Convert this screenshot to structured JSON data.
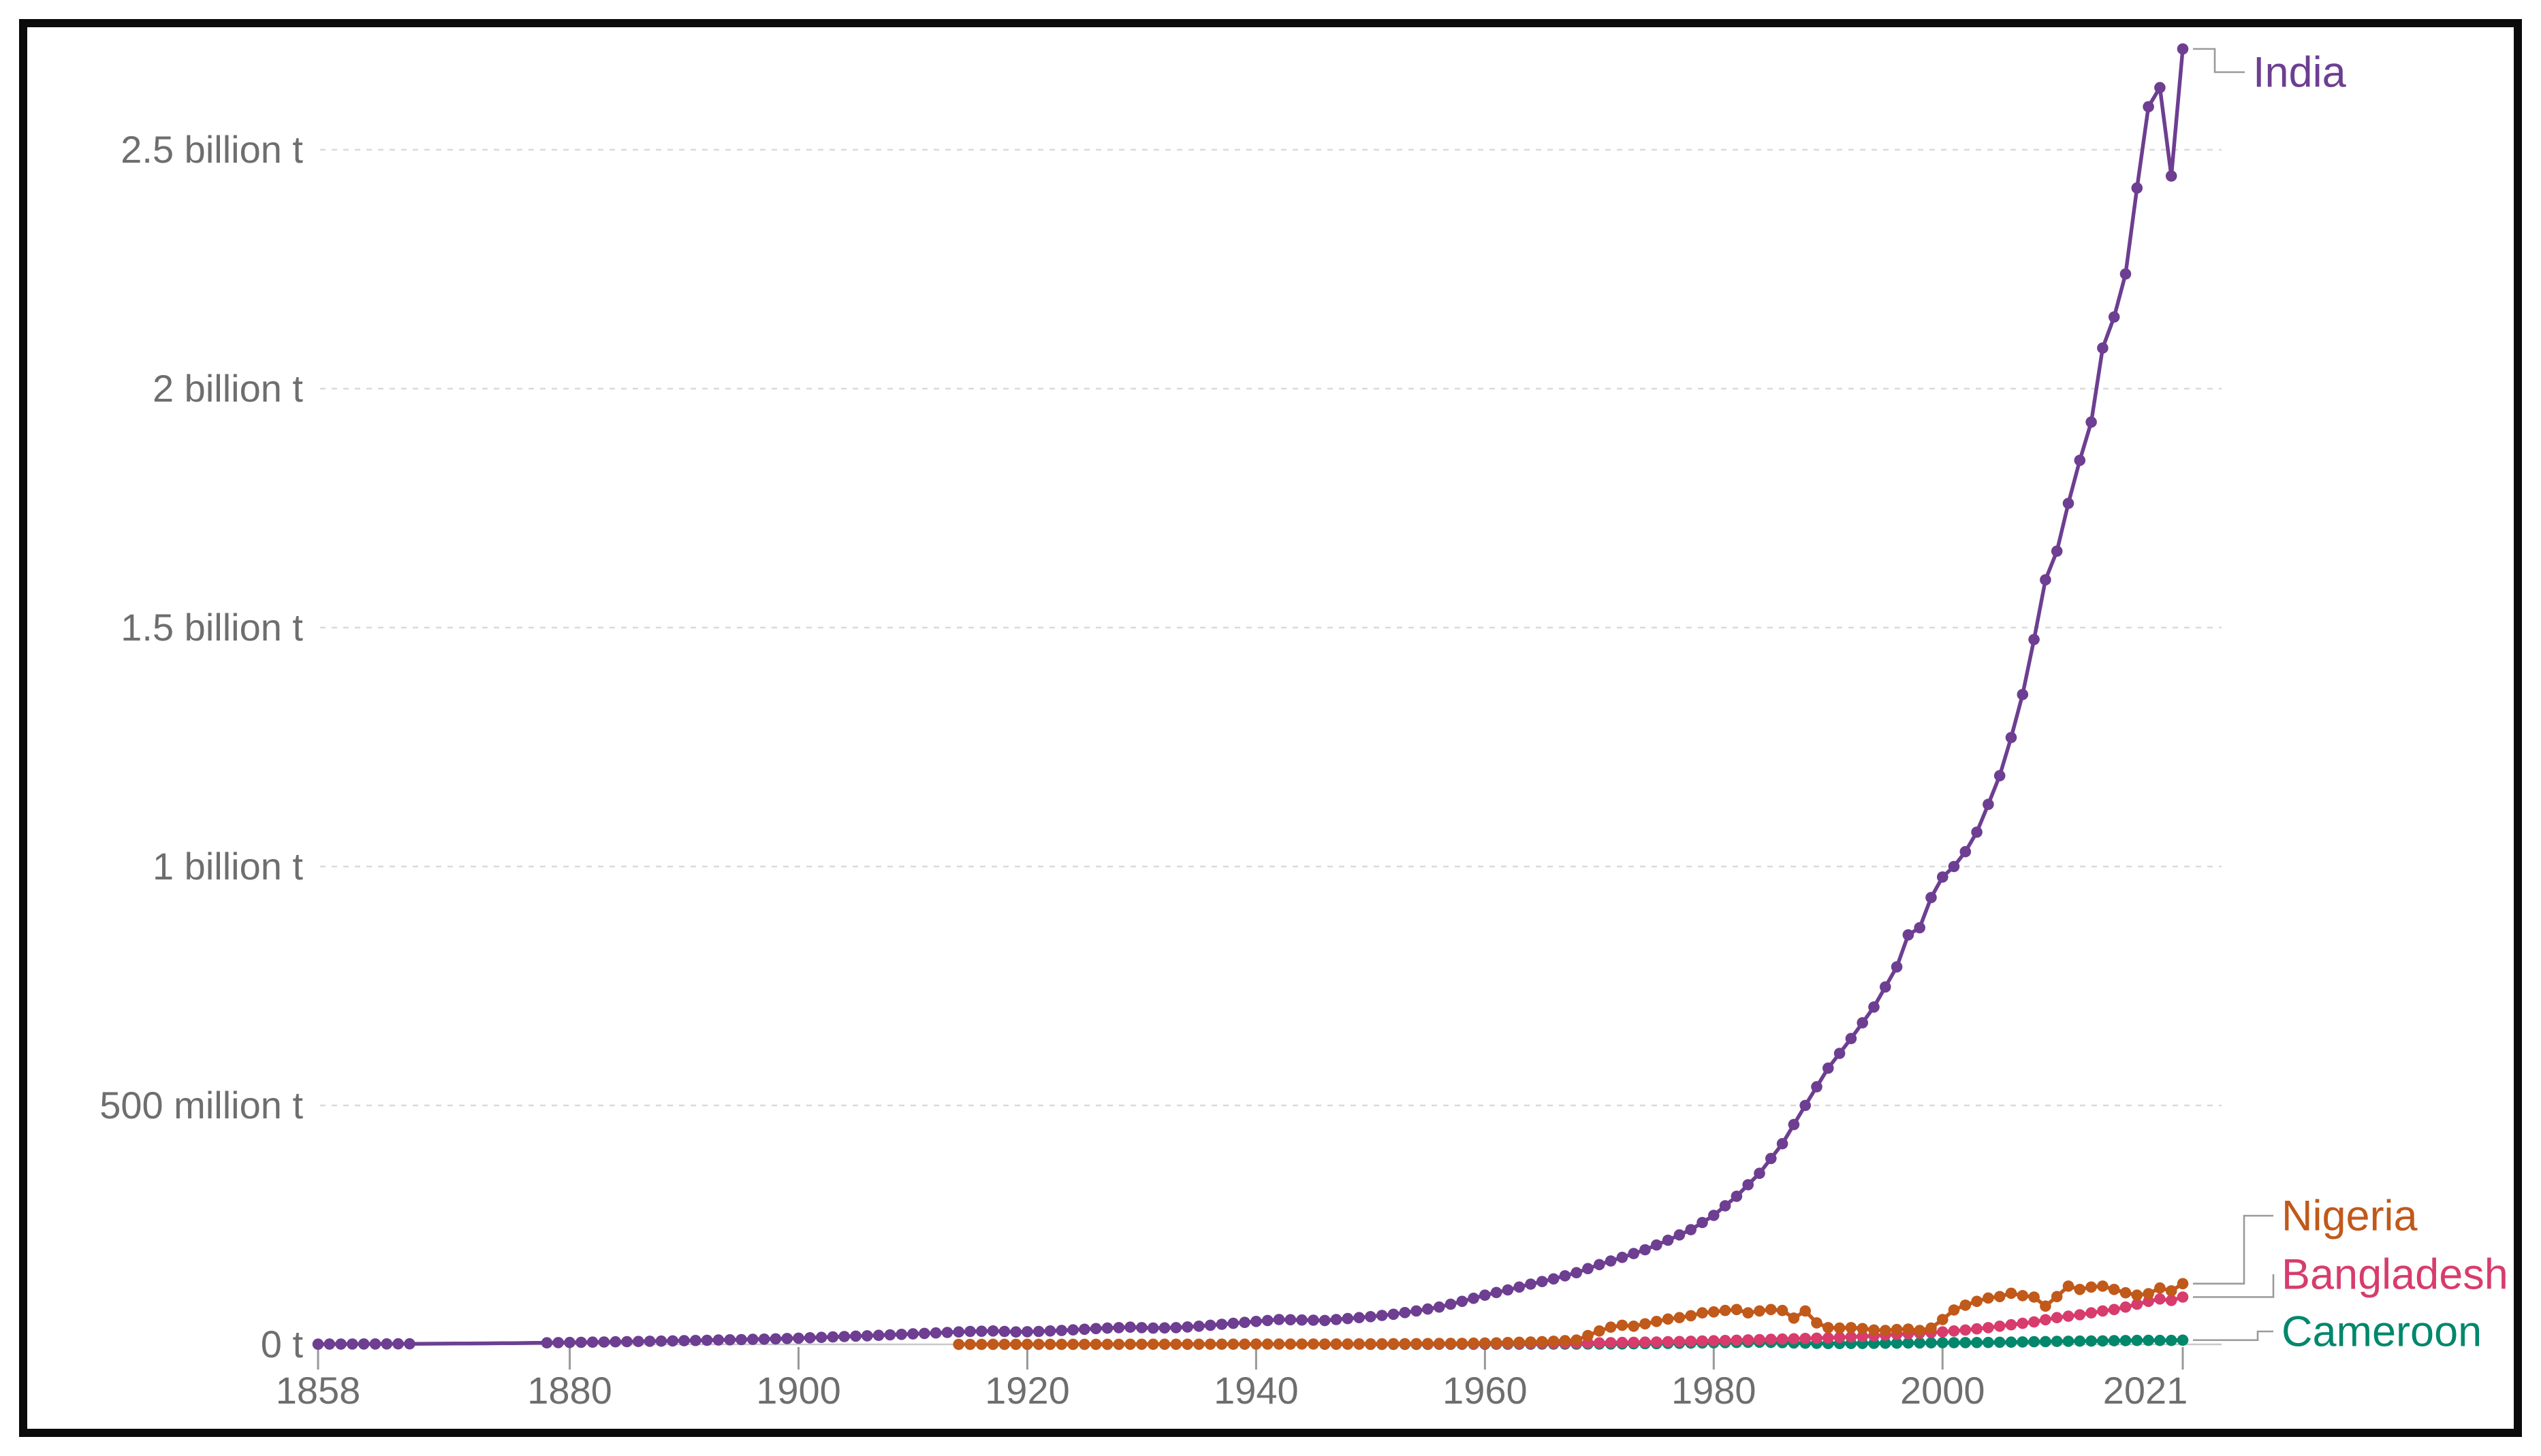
{
  "chart_data": {
    "type": "line",
    "unit": "t",
    "grid": "dashed-horizontal",
    "legend_position": "right-end-labels",
    "colors": {
      "axis_text": "#6e6e6e",
      "gridline": "#dadada",
      "zero_line": "#c9c9c9",
      "tick_mark": "#999999",
      "connector": "#9a9a9a",
      "frame": "#0b0b0b"
    },
    "x_axis": {
      "tick_years": [
        1858,
        1880,
        1900,
        1920,
        1940,
        1960,
        1980,
        2000,
        2021
      ],
      "tick_labels": [
        "1858",
        "1880",
        "1900",
        "1920",
        "1940",
        "1960",
        "1980",
        "2000",
        "2021"
      ],
      "range": [
        1858,
        2021
      ]
    },
    "y_axis": {
      "tick_values_mt": [
        0,
        500,
        1000,
        1500,
        2000,
        2500
      ],
      "tick_labels": [
        "0 t",
        "500 million t",
        "1 billion t",
        "1.5 billion t",
        "2 billion t",
        "2.5 billion t"
      ],
      "range_mt": [
        0,
        2780
      ]
    },
    "series": [
      {
        "name": "India",
        "color": "#6D3E91",
        "marker_gaps": [
          [
            1867,
            1877
          ]
        ],
        "points": [
          [
            1858,
            0.4
          ],
          [
            1861,
            0.7
          ],
          [
            1864,
            1.0
          ],
          [
            1866,
            1.15
          ],
          [
            1869,
            1.5
          ],
          [
            1872,
            2.0
          ],
          [
            1875,
            2.6
          ],
          [
            1878,
            3.3
          ],
          [
            1880,
            4.0
          ],
          [
            1883,
            5.0
          ],
          [
            1886,
            6.1
          ],
          [
            1889,
            7.3
          ],
          [
            1892,
            8.6
          ],
          [
            1895,
            10
          ],
          [
            1898,
            11.5
          ],
          [
            1900,
            13
          ],
          [
            1903,
            15.5
          ],
          [
            1906,
            18
          ],
          [
            1909,
            21
          ],
          [
            1912,
            24
          ],
          [
            1915,
            27
          ],
          [
            1917,
            28
          ],
          [
            1919,
            26
          ],
          [
            1921,
            27
          ],
          [
            1923,
            29
          ],
          [
            1926,
            33
          ],
          [
            1929,
            36
          ],
          [
            1931,
            34
          ],
          [
            1933,
            35
          ],
          [
            1935,
            38
          ],
          [
            1937,
            42
          ],
          [
            1940,
            48
          ],
          [
            1942,
            52
          ],
          [
            1944,
            51
          ],
          [
            1946,
            50
          ],
          [
            1948,
            54
          ],
          [
            1950,
            58
          ],
          [
            1952,
            63
          ],
          [
            1954,
            70
          ],
          [
            1956,
            78
          ],
          [
            1958,
            90
          ],
          [
            1960,
            103
          ],
          [
            1962,
            114
          ],
          [
            1964,
            126
          ],
          [
            1966,
            137
          ],
          [
            1968,
            150
          ],
          [
            1970,
            167
          ],
          [
            1972,
            182
          ],
          [
            1974,
            198
          ],
          [
            1976,
            218
          ],
          [
            1978,
            240
          ],
          [
            1980,
            270
          ],
          [
            1982,
            310
          ],
          [
            1984,
            358
          ],
          [
            1986,
            420
          ],
          [
            1988,
            500
          ],
          [
            1990,
            578
          ],
          [
            1992,
            640
          ],
          [
            1994,
            706
          ],
          [
            1996,
            790
          ],
          [
            1997,
            857
          ],
          [
            1998,
            872
          ],
          [
            1999,
            935
          ],
          [
            2000,
            978
          ],
          [
            2001,
            1000
          ],
          [
            2002,
            1031
          ],
          [
            2003,
            1072
          ],
          [
            2004,
            1130
          ],
          [
            2005,
            1190
          ],
          [
            2006,
            1270
          ],
          [
            2007,
            1360
          ],
          [
            2008,
            1475
          ],
          [
            2009,
            1600
          ],
          [
            2010,
            1660
          ],
          [
            2011,
            1760
          ],
          [
            2012,
            1850
          ],
          [
            2013,
            1930
          ],
          [
            2014,
            2085
          ],
          [
            2015,
            2150
          ],
          [
            2016,
            2240
          ],
          [
            2017,
            2420
          ],
          [
            2018,
            2590
          ],
          [
            2019,
            2630
          ],
          [
            2020,
            2445
          ],
          [
            2021,
            2711
          ]
        ]
      },
      {
        "name": "Nigeria",
        "color": "#C0591A",
        "points": [
          [
            1914,
            0.05
          ],
          [
            1920,
            0.1
          ],
          [
            1925,
            0.15
          ],
          [
            1930,
            0.25
          ],
          [
            1935,
            0.35
          ],
          [
            1940,
            0.5
          ],
          [
            1945,
            0.7
          ],
          [
            1950,
            1.0
          ],
          [
            1954,
            1.5
          ],
          [
            1958,
            2.2
          ],
          [
            1961,
            3.2
          ],
          [
            1964,
            5.0
          ],
          [
            1966,
            6.5
          ],
          [
            1968,
            9
          ],
          [
            1970,
            28
          ],
          [
            1971,
            36
          ],
          [
            1972,
            40
          ],
          [
            1973,
            38
          ],
          [
            1974,
            43
          ],
          [
            1975,
            48
          ],
          [
            1976,
            53
          ],
          [
            1977,
            56
          ],
          [
            1978,
            60
          ],
          [
            1979,
            66
          ],
          [
            1980,
            68
          ],
          [
            1981,
            71
          ],
          [
            1982,
            73
          ],
          [
            1983,
            66
          ],
          [
            1984,
            70
          ],
          [
            1985,
            73
          ],
          [
            1986,
            71
          ],
          [
            1987,
            55
          ],
          [
            1988,
            70
          ],
          [
            1989,
            45
          ],
          [
            1990,
            35
          ],
          [
            1991,
            34
          ],
          [
            1992,
            35
          ],
          [
            1993,
            33
          ],
          [
            1994,
            30
          ],
          [
            1995,
            29
          ],
          [
            1996,
            31
          ],
          [
            1997,
            32
          ],
          [
            1998,
            29
          ],
          [
            1999,
            34
          ],
          [
            2000,
            52
          ],
          [
            2001,
            72
          ],
          [
            2002,
            82
          ],
          [
            2003,
            90
          ],
          [
            2004,
            97
          ],
          [
            2005,
            100
          ],
          [
            2006,
            107
          ],
          [
            2007,
            102
          ],
          [
            2008,
            99
          ],
          [
            2009,
            80
          ],
          [
            2010,
            100
          ],
          [
            2011,
            122
          ],
          [
            2012,
            115
          ],
          [
            2013,
            120
          ],
          [
            2014,
            122
          ],
          [
            2015,
            115
          ],
          [
            2016,
            108
          ],
          [
            2017,
            103
          ],
          [
            2018,
            106
          ],
          [
            2019,
            118
          ],
          [
            2020,
            112
          ],
          [
            2021,
            127
          ]
        ]
      },
      {
        "name": "Bangladesh",
        "color": "#D73C6C",
        "points": [
          [
            1946,
            0.3
          ],
          [
            1950,
            0.5
          ],
          [
            1955,
            0.9
          ],
          [
            1960,
            1.4
          ],
          [
            1965,
            2.1
          ],
          [
            1970,
            3.2
          ],
          [
            1975,
            5.0
          ],
          [
            1980,
            7.6
          ],
          [
            1985,
            10.5
          ],
          [
            1990,
            13.6
          ],
          [
            1993,
            16.5
          ],
          [
            1996,
            21
          ],
          [
            1999,
            24.5
          ],
          [
            2000,
            26
          ],
          [
            2002,
            30
          ],
          [
            2004,
            35
          ],
          [
            2006,
            41
          ],
          [
            2008,
            47
          ],
          [
            2010,
            56
          ],
          [
            2012,
            62
          ],
          [
            2014,
            70
          ],
          [
            2015,
            73
          ],
          [
            2016,
            78
          ],
          [
            2017,
            84
          ],
          [
            2018,
            90
          ],
          [
            2019,
            95
          ],
          [
            2020,
            92
          ],
          [
            2021,
            99
          ]
        ]
      },
      {
        "name": "Cameroon",
        "color": "#00876C",
        "points": [
          [
            1950,
            0.1
          ],
          [
            1955,
            0.2
          ],
          [
            1960,
            0.35
          ],
          [
            1965,
            0.5
          ],
          [
            1970,
            0.7
          ],
          [
            1975,
            1.6
          ],
          [
            1980,
            3.4
          ],
          [
            1984,
            4.6
          ],
          [
            1987,
            3.0
          ],
          [
            1990,
            1.8
          ],
          [
            1993,
            2.0
          ],
          [
            1996,
            2.6
          ],
          [
            2000,
            3.5
          ],
          [
            2004,
            4.0
          ],
          [
            2008,
            5.5
          ],
          [
            2010,
            6.3
          ],
          [
            2013,
            7.0
          ],
          [
            2016,
            8.0
          ],
          [
            2018,
            8.4
          ],
          [
            2020,
            8.2
          ],
          [
            2021,
            8.9
          ]
        ]
      }
    ]
  }
}
